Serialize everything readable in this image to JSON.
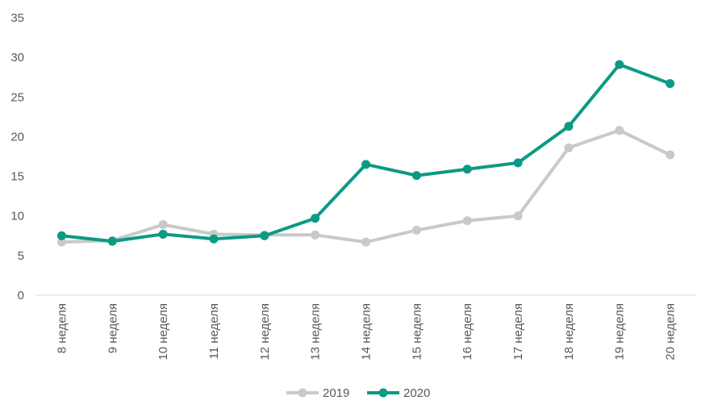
{
  "chart_data": {
    "type": "line",
    "title": "",
    "xlabel": "",
    "ylabel": "",
    "ylim": [
      0,
      35
    ],
    "yticks": [
      0,
      5,
      10,
      15,
      20,
      25,
      30,
      35
    ],
    "categories": [
      "8 неделя",
      "9 неделя",
      "10 неделя",
      "11 неделя",
      "12 неделя",
      "13 неделя",
      "14 неделя",
      "15 неделя",
      "16 неделя",
      "17 неделя",
      "18 неделя",
      "19 неделя",
      "20 неделя"
    ],
    "series": [
      {
        "name": "2019",
        "color": "#c9c9c9",
        "values": [
          6.7,
          6.9,
          8.9,
          7.7,
          7.6,
          7.6,
          6.7,
          8.2,
          9.4,
          10.0,
          18.6,
          20.8,
          17.7
        ]
      },
      {
        "name": "2020",
        "color": "#0b9a84",
        "values": [
          7.5,
          6.8,
          7.7,
          7.1,
          7.5,
          9.7,
          16.5,
          15.1,
          15.9,
          16.7,
          21.3,
          29.1,
          26.7
        ]
      }
    ],
    "legend_position": "bottom"
  }
}
